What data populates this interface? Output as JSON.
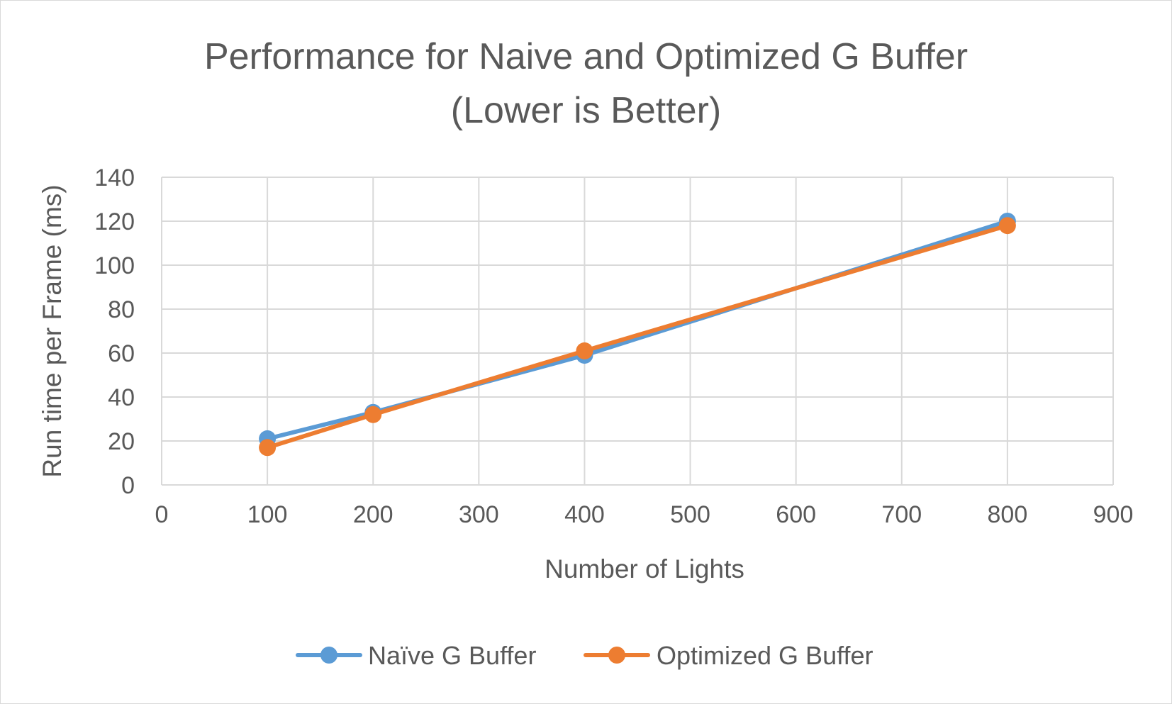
{
  "chart_data": {
    "type": "scatter",
    "title_line1": "Performance for Naive and Optimized G Buffer",
    "title_line2": "(Lower is Better)",
    "xlabel": "Number of Lights",
    "ylabel": "Run time per Frame (ms)",
    "xlim": [
      0,
      900
    ],
    "ylim": [
      0,
      140
    ],
    "x_ticks": [
      "0",
      "100",
      "200",
      "300",
      "400",
      "500",
      "600",
      "700",
      "800",
      "900"
    ],
    "y_ticks": [
      "0",
      "20",
      "40",
      "60",
      "80",
      "100",
      "120",
      "140"
    ],
    "grid": true,
    "legend_position": "bottom",
    "series": [
      {
        "name": "Naïve G Buffer",
        "color": "#5b9bd5",
        "x": [
          100,
          200,
          400,
          800
        ],
        "y": [
          21,
          33,
          59,
          120
        ]
      },
      {
        "name": "Optimized G Buffer",
        "color": "#ed7d31",
        "x": [
          100,
          200,
          400,
          800
        ],
        "y": [
          17,
          32,
          61,
          118
        ]
      }
    ]
  }
}
